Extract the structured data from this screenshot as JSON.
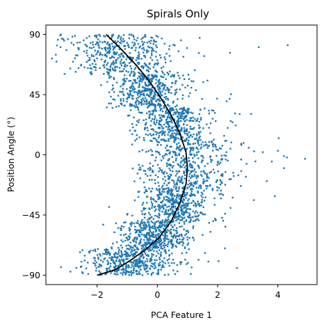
{
  "chart_data": {
    "type": "scatter",
    "title": "Spirals Only",
    "xlabel": "PCA Feature 1",
    "ylabel": "Position Angle (°)",
    "xlim": [
      -3.7,
      5.3
    ],
    "ylim": [
      -97,
      97
    ],
    "x_ticks": [
      -2,
      0,
      2,
      4
    ],
    "x_tick_labels": [
      "−2",
      "0",
      "2",
      "4"
    ],
    "y_ticks": [
      90,
      45,
      0,
      -45,
      -90
    ],
    "y_tick_labels": [
      "90",
      "45",
      "0",
      "−45",
      "−90"
    ],
    "grid": false,
    "legend": "none",
    "scatter_color": "#1f77b4",
    "fit_line_color": "#000000",
    "fit_curve": {
      "x": [
        -1.7,
        -1.2,
        -0.7,
        -0.3,
        0.1,
        0.45,
        0.75,
        0.95,
        1.0,
        0.95,
        0.75,
        0.45,
        0.05,
        -0.4,
        -0.9,
        -1.4,
        -2.0
      ],
      "y": [
        90,
        79,
        67,
        56,
        43,
        30,
        16,
        2,
        -10,
        -22,
        -36,
        -50,
        -62,
        -71,
        -79,
        -86,
        -90
      ]
    },
    "point_cloud_regions": [
      {
        "y_range": [
          60,
          90
        ],
        "x_center": -1.3,
        "x_spread": 0.85
      },
      {
        "y_range": [
          35,
          60
        ],
        "x_center": -0.4,
        "x_spread": 0.6
      },
      {
        "y_range": [
          10,
          35
        ],
        "x_center": 0.5,
        "x_spread": 0.55
      },
      {
        "y_range": [
          -25,
          10
        ],
        "x_center": 0.9,
        "x_spread": 0.75
      },
      {
        "y_range": [
          -50,
          -25
        ],
        "x_center": 0.55,
        "x_spread": 0.55
      },
      {
        "y_range": [
          -70,
          -50
        ],
        "x_center": -0.1,
        "x_spread": 0.55
      },
      {
        "y_range": [
          -90,
          -70
        ],
        "x_center": -0.9,
        "x_spread": 0.75
      }
    ],
    "outliers": [
      {
        "x": 4.9,
        "y": -3
      },
      {
        "x": 4.3,
        "y": -2
      },
      {
        "x": 4.2,
        "y": -10
      },
      {
        "x": 4.0,
        "y": 3
      },
      {
        "x": 3.8,
        "y": -5
      },
      {
        "x": 3.5,
        "y": 2
      },
      {
        "x": -3.5,
        "y": 72
      },
      {
        "x": -3.3,
        "y": 86
      },
      {
        "x": -3.2,
        "y": 90
      },
      {
        "x": -3.2,
        "y": -84
      },
      {
        "x": 2.6,
        "y": 22
      },
      {
        "x": 2.5,
        "y": -32
      },
      {
        "x": 2.3,
        "y": 40
      },
      {
        "x": -1.6,
        "y": -39
      },
      {
        "x": -0.9,
        "y": 38
      }
    ],
    "n_points_approx": 3000
  }
}
